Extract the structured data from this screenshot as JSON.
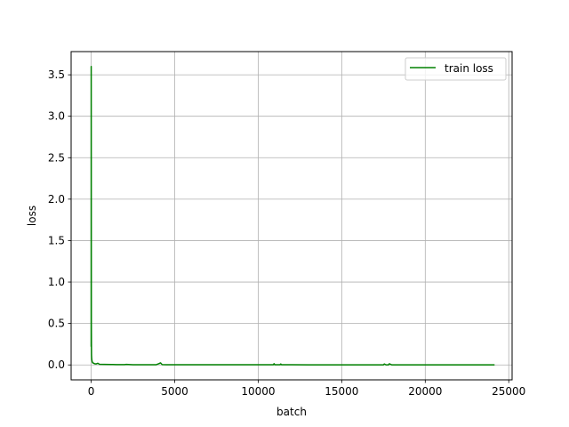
{
  "chart_data": {
    "type": "line",
    "title": "",
    "xlabel": "batch",
    "ylabel": "loss",
    "xlim": [
      -1200,
      25200
    ],
    "ylim": [
      -0.18,
      3.78
    ],
    "xticks": [
      0,
      5000,
      10000,
      15000,
      20000,
      25000
    ],
    "yticks": [
      0.0,
      0.5,
      1.0,
      1.5,
      2.0,
      2.5,
      3.0,
      3.5
    ],
    "xtick_labels": [
      "0",
      "5000",
      "10000",
      "15000",
      "20000",
      "25000"
    ],
    "ytick_labels": [
      "0.0",
      "0.5",
      "1.0",
      "1.5",
      "2.0",
      "2.5",
      "3.0",
      "3.5"
    ],
    "grid": true,
    "legend": {
      "placement": "upper right",
      "entries": [
        "train loss"
      ]
    },
    "series": [
      {
        "name": "train loss",
        "color": "#008000",
        "x": [
          0,
          2,
          4,
          6,
          8,
          10,
          15,
          20,
          30,
          40,
          60,
          80,
          100,
          150,
          200,
          300,
          400,
          500,
          800,
          1200,
          1500,
          2000,
          2100,
          2500,
          3000,
          3900,
          4050,
          4150,
          4250,
          4500,
          5000,
          6000,
          7000,
          8000,
          9000,
          10000,
          10900,
          10950,
          11000,
          11300,
          11350,
          11400,
          12000,
          13000,
          14000,
          15000,
          16000,
          17000,
          17500,
          17550,
          17650,
          17800,
          17850,
          18000,
          19000,
          20000,
          21000,
          22000,
          23000,
          24000,
          24150
        ],
        "y": [
          0.22,
          3.6,
          3.0,
          2.2,
          1.2,
          0.5,
          0.25,
          0.12,
          0.08,
          0.06,
          0.04,
          0.03,
          0.025,
          0.02,
          0.015,
          0.012,
          0.02,
          0.008,
          0.006,
          0.005,
          0.004,
          0.004,
          0.006,
          0.003,
          0.003,
          0.003,
          0.015,
          0.025,
          0.004,
          0.003,
          0.002,
          0.002,
          0.002,
          0.002,
          0.002,
          0.002,
          0.002,
          0.015,
          0.002,
          0.002,
          0.012,
          0.002,
          0.002,
          0.001,
          0.001,
          0.001,
          0.001,
          0.001,
          0.001,
          0.012,
          0.001,
          0.001,
          0.014,
          0.001,
          0.001,
          0.001,
          0.001,
          0.001,
          0.001,
          0.001,
          0.001
        ]
      }
    ]
  }
}
